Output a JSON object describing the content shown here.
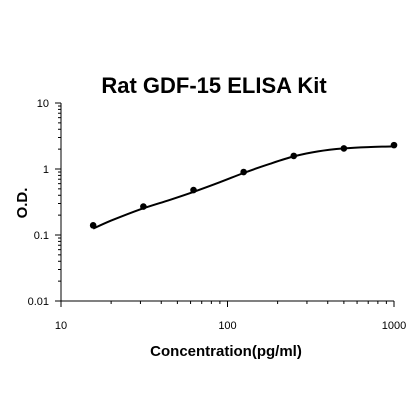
{
  "chart_data": {
    "type": "scatter",
    "title": "Rat GDF-15 ELISA Kit",
    "xlabel": "Concentration(pg/ml)",
    "ylabel": "O.D.",
    "xscale": "log",
    "yscale": "log",
    "xlim": [
      10,
      1000
    ],
    "ylim": [
      0.01,
      10
    ],
    "x_ticks": [
      "10",
      "100",
      "1000"
    ],
    "y_ticks": [
      "10",
      "1",
      "0.1",
      "0.01"
    ],
    "grid": false,
    "legend": "none",
    "series": [
      {
        "points": [
          {
            "x": 15.6,
            "y": 0.14
          },
          {
            "x": 31.25,
            "y": 0.27
          },
          {
            "x": 62.5,
            "y": 0.48
          },
          {
            "x": 125,
            "y": 0.9
          },
          {
            "x": 250,
            "y": 1.58
          },
          {
            "x": 500,
            "y": 2.05
          },
          {
            "x": 1000,
            "y": 2.3
          }
        ],
        "fit_curve": [
          {
            "x": 15.6,
            "y": 0.125
          },
          {
            "x": 20,
            "y": 0.165
          },
          {
            "x": 30,
            "y": 0.245
          },
          {
            "x": 45,
            "y": 0.34
          },
          {
            "x": 62.5,
            "y": 0.45
          },
          {
            "x": 90,
            "y": 0.63
          },
          {
            "x": 125,
            "y": 0.87
          },
          {
            "x": 180,
            "y": 1.2
          },
          {
            "x": 250,
            "y": 1.55
          },
          {
            "x": 350,
            "y": 1.85
          },
          {
            "x": 500,
            "y": 2.05
          },
          {
            "x": 700,
            "y": 2.15
          },
          {
            "x": 1000,
            "y": 2.2
          }
        ]
      }
    ],
    "colors": {
      "marker": "#000000",
      "line": "#000000",
      "axis": "#000000"
    }
  }
}
